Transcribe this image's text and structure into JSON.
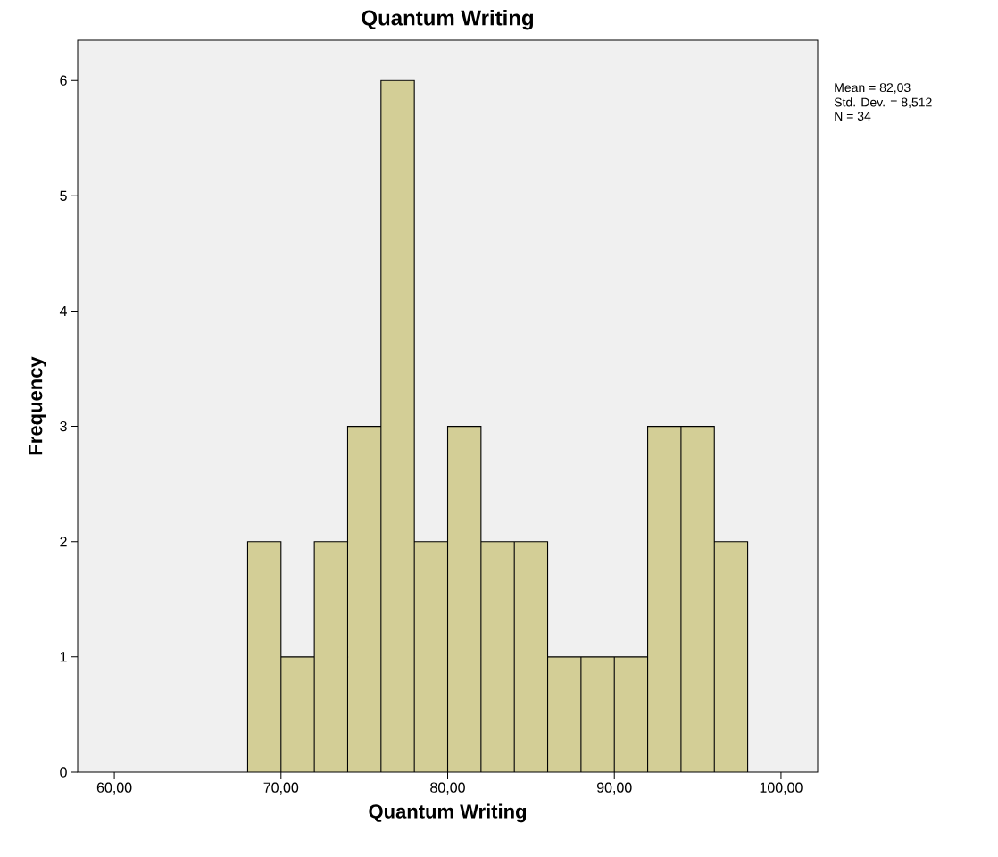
{
  "chart_data": {
    "type": "histogram",
    "title": "Quantum Writing",
    "xlabel": "Quantum Writing",
    "ylabel": "Frequency",
    "bins": [
      68,
      70,
      72,
      74,
      76,
      78,
      80,
      82,
      84,
      86,
      88,
      90,
      92,
      94,
      96,
      98
    ],
    "values": [
      2,
      1,
      2,
      3,
      6,
      2,
      3,
      2,
      2,
      1,
      1,
      1,
      3,
      3,
      2
    ],
    "color": "#d3ce96",
    "xlim": [
      57.8,
      102.2
    ],
    "ylim": [
      0,
      6.35
    ],
    "xticks": [
      {
        "value": 60,
        "label": "60,00"
      },
      {
        "value": 70,
        "label": "70,00"
      },
      {
        "value": 80,
        "label": "80,00"
      },
      {
        "value": 90,
        "label": "90,00"
      },
      {
        "value": 100,
        "label": "100,00"
      }
    ],
    "yticks": [
      0,
      1,
      2,
      3,
      4,
      5,
      6
    ],
    "grid": false,
    "annotations": [
      "Mean = 82,03",
      "Std. Dev. = 8,512",
      "N = 34"
    ]
  }
}
